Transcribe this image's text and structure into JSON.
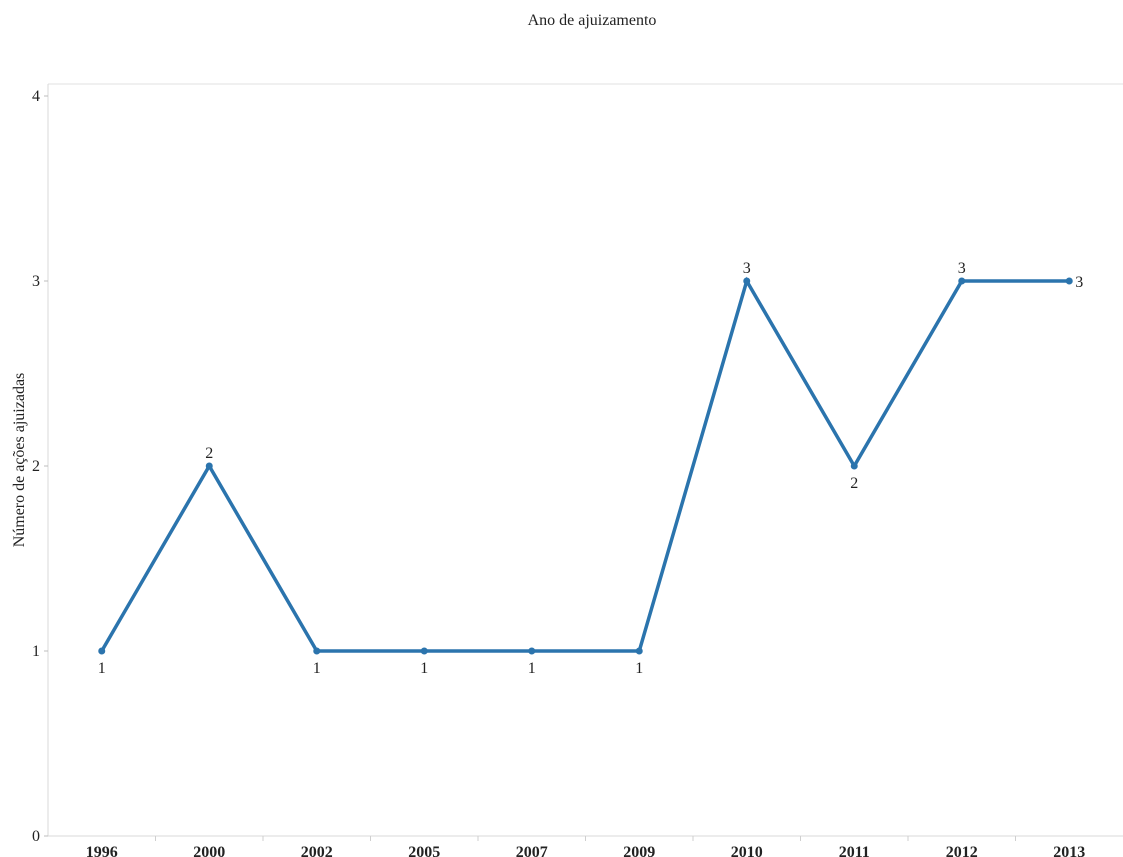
{
  "chart_data": {
    "type": "line",
    "title": "Ano de ajuizamento",
    "xlabel": "",
    "ylabel": "Número de ações ajuizadas",
    "categories": [
      "1996",
      "2000",
      "2002",
      "2005",
      "2007",
      "2009",
      "2010",
      "2011",
      "2012",
      "2013"
    ],
    "series": [
      {
        "values": [
          1,
          2,
          1,
          1,
          1,
          1,
          3,
          2,
          3,
          3
        ]
      }
    ],
    "ylim": [
      0,
      4
    ],
    "yticks": [
      "0",
      "1",
      "2",
      "3",
      "4"
    ],
    "grid": false,
    "legend": "none",
    "line_color": "#2b74ad",
    "label_positions": [
      "below",
      "above",
      "below",
      "below",
      "below",
      "below",
      "above",
      "below",
      "above",
      "right"
    ]
  }
}
